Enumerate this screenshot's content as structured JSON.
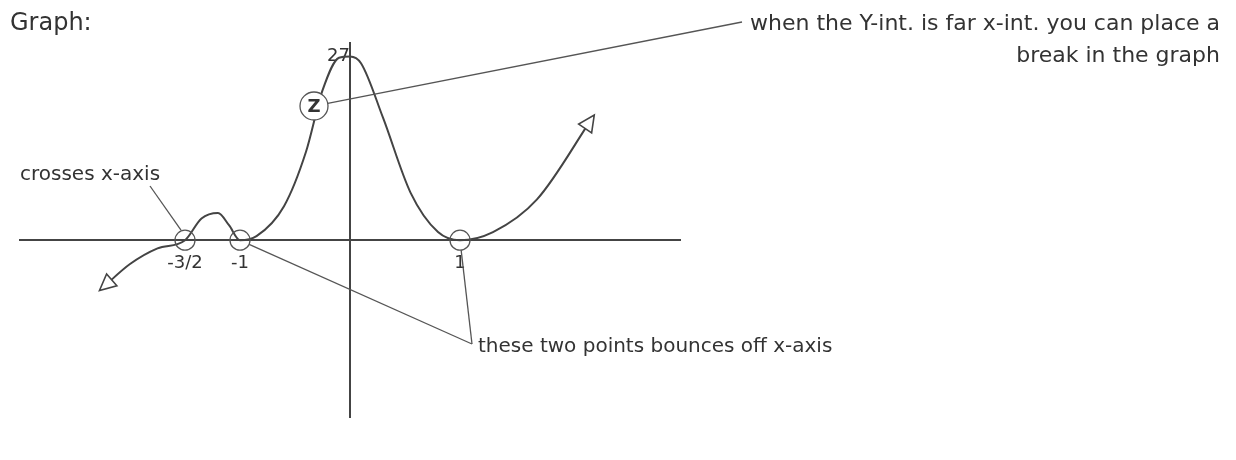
{
  "chart_data": {
    "type": "line",
    "title": "Graph:",
    "x": [
      -2.25,
      -2.0,
      -1.75,
      -1.5,
      -1.35,
      -1.2,
      -1.1,
      -1.0,
      -0.85,
      -0.6,
      -0.4,
      -0.25,
      -0.1,
      0,
      0.1,
      0.3,
      0.55,
      0.8,
      1.0,
      1.3,
      1.7,
      2.2
    ],
    "values": [
      -7,
      -3.5,
      -1.2,
      0,
      3.2,
      4.0,
      2.2,
      0,
      0.6,
      5,
      13,
      22,
      26.8,
      27,
      26,
      18,
      7,
      1.2,
      0,
      1.2,
      6,
      17.9
    ],
    "color": "#444444",
    "xlim": [
      -3,
      3
    ],
    "ylim": [
      -26,
      29
    ],
    "xticks": [
      {
        "value": -1.5,
        "label": "-3/2"
      },
      -1,
      1
    ],
    "yticks": [
      27
    ],
    "grid": false,
    "annotations": [
      {
        "text": "crosses x-axis",
        "at": [
          -1.5
        ]
      },
      {
        "text": "these two points bounces off x-axis",
        "at": [
          -1,
          1
        ]
      },
      {
        "text": "when the Y-int. is far x-int. you can place a break in the graph"
      },
      {
        "text": "Z"
      }
    ]
  }
}
